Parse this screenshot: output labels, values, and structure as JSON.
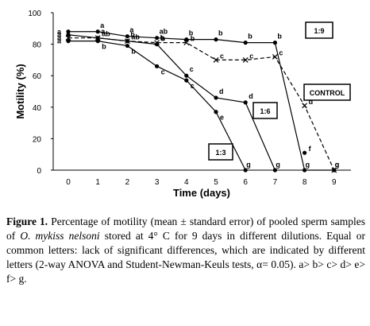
{
  "chart_data": {
    "type": "line",
    "xlabel": "Time (days)",
    "ylabel": "Motility (%)",
    "xlim": [
      -0.3,
      9.3
    ],
    "ylim": [
      0,
      100
    ],
    "xticks": [
      0,
      1,
      2,
      3,
      4,
      5,
      6,
      7,
      8,
      9
    ],
    "yticks": [
      0,
      20,
      40,
      60,
      80,
      100
    ],
    "series": [
      {
        "name": "1:9",
        "x": [
          0,
          1,
          2,
          3,
          4,
          5,
          6,
          7,
          8,
          9
        ],
        "y": [
          88,
          88,
          85,
          84,
          83,
          83,
          81,
          81,
          0,
          0
        ],
        "style": "solid",
        "letters": [
          "a",
          "a",
          "a",
          "ab",
          "b",
          "b",
          "b",
          "b",
          "g",
          "g"
        ]
      },
      {
        "name": "CONTROL",
        "x": [
          0,
          1,
          2,
          3,
          4,
          5,
          6,
          7,
          8,
          9
        ],
        "y": [
          84,
          84,
          82,
          81,
          81,
          70,
          70,
          72,
          41,
          0
        ],
        "style": "dashed",
        "letters": [
          "a",
          "ab",
          "ab",
          "b",
          "b",
          "c",
          "c",
          "c",
          "d",
          "g"
        ]
      },
      {
        "name": "1:6",
        "x": [
          0,
          1,
          2,
          3,
          4,
          5,
          6,
          7
        ],
        "y": [
          86,
          84,
          82,
          80,
          60,
          46,
          43,
          0
        ],
        "style": "solid",
        "letters": [
          "a",
          "a",
          "b",
          "b",
          "c",
          "d",
          "d",
          "g"
        ]
      },
      {
        "name": "1:3",
        "x": [
          0,
          1,
          2,
          3,
          4,
          5,
          6
        ],
        "y": [
          82,
          82,
          79,
          66,
          57,
          37,
          0
        ],
        "style": "solid",
        "letters": [
          "a",
          "b",
          "b",
          "c",
          "c",
          "e",
          "g"
        ]
      }
    ],
    "extra_points": [
      {
        "x": 8,
        "y": 11,
        "letter": "f"
      }
    ],
    "series_labels": [
      "1:9",
      "CONTROL",
      "1:6",
      "1:3"
    ]
  },
  "caption": {
    "label": "Figure 1.",
    "text_before": " Percentage of motility (mean ± standard error) of pooled sperm samples of ",
    "species": "O. mykiss nelsoni",
    "text_after": " stored at 4° C for 9 days in different dilutions. Equal or common letters: lack of significant differences, which are indicated by different letters (2-way ANOVA and Student-Newman-Keuls tests, α= 0.05). a> b> c> d> e> f> g."
  }
}
